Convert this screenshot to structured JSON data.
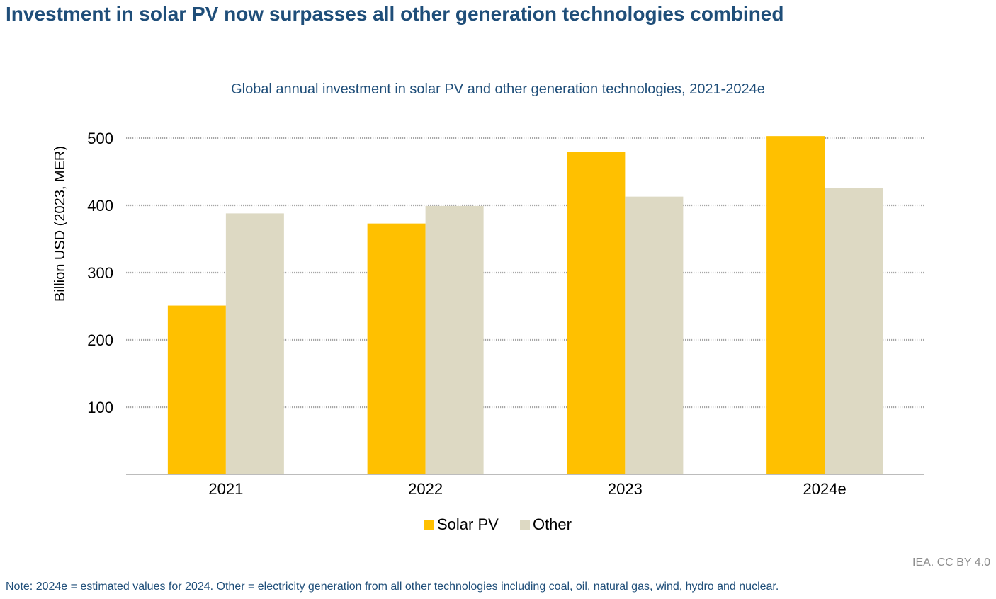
{
  "header": {
    "title": "Investment in solar PV now surpasses all other generation technologies combined"
  },
  "colors": {
    "title": "#1f4e79",
    "solar": "#ffc000",
    "other": "#ddd9c3",
    "grid": "#a6a6a6",
    "axis": "#a6a6a6",
    "source": "#8c8c8c"
  },
  "footer": {
    "source": "IEA. CC BY 4.0",
    "note": "Note: 2024e = estimated values for 2024. Other = electricity generation from all other technologies including coal, oil, natural gas, wind, hydro and nuclear."
  },
  "chart_data": {
    "type": "bar",
    "title": "Global annual investment in solar PV and other generation technologies, 2021-2024e",
    "xlabel": "",
    "ylabel": "Billion USD (2023, MER)",
    "categories": [
      "2021",
      "2022",
      "2023",
      "2024e"
    ],
    "series": [
      {
        "name": "Solar PV",
        "values": [
          251,
          373,
          480,
          503
        ]
      },
      {
        "name": "Other",
        "values": [
          388,
          399,
          413,
          426
        ]
      }
    ],
    "ylim": [
      0,
      500
    ],
    "yticks": [
      100,
      200,
      300,
      400,
      500
    ],
    "grid": true,
    "legend_position": "bottom"
  }
}
